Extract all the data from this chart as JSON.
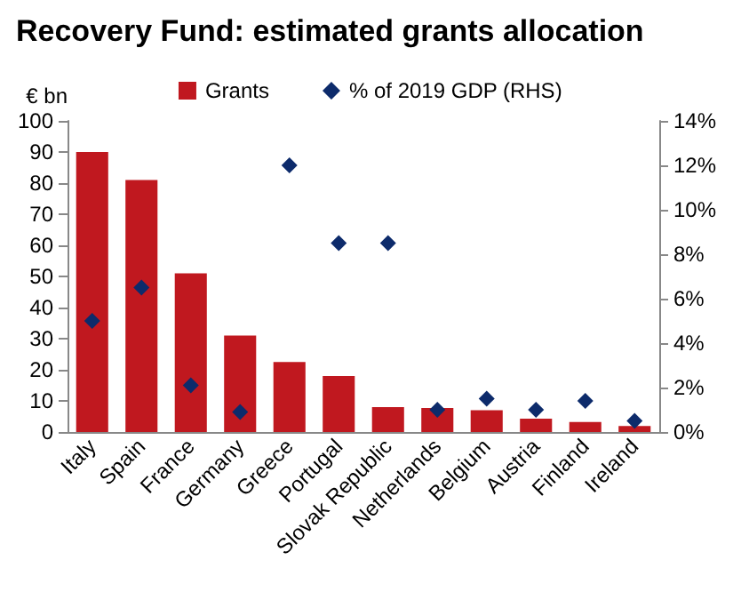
{
  "chart_data": {
    "type": "bar",
    "title": "Recovery Fund: estimated grants allocation",
    "ylabel": "€ bn",
    "categories": [
      "Italy",
      "Spain",
      "France",
      "Germany",
      "Greece",
      "Portugal",
      "Slovak Republic",
      "Netherlands",
      "Belgium",
      "Austria",
      "Finland",
      "Ireland"
    ],
    "series": [
      {
        "name": "Grants",
        "color": "#c0181f",
        "values": [
          90,
          81,
          51,
          31,
          22.5,
          18,
          8,
          7.7,
          7,
          4.3,
          3.2,
          1.9
        ]
      },
      {
        "name": "% of 2019 GDP (RHS)",
        "type": "scatter",
        "axis": "y2",
        "marker": "diamond",
        "color": "#0d2b6b",
        "values": [
          5.0,
          6.5,
          2.1,
          0.9,
          12.0,
          8.5,
          8.5,
          1.0,
          1.5,
          1.0,
          1.4,
          0.5
        ]
      }
    ],
    "ylim": [
      0,
      100
    ],
    "yticks": [
      0,
      10,
      20,
      30,
      40,
      50,
      60,
      70,
      80,
      90,
      100
    ],
    "y2lim": [
      0,
      14
    ],
    "y2ticks": [
      {
        "value": 0,
        "label": "0%"
      },
      {
        "value": 2,
        "label": "2%"
      },
      {
        "value": 4,
        "label": "4%"
      },
      {
        "value": 6,
        "label": "6%"
      },
      {
        "value": 8,
        "label": "8%"
      },
      {
        "value": 10,
        "label": "10%"
      },
      {
        "value": 12,
        "label": "12%"
      },
      {
        "value": 14,
        "label": "14%"
      }
    ],
    "legend": "top",
    "grid": false
  }
}
